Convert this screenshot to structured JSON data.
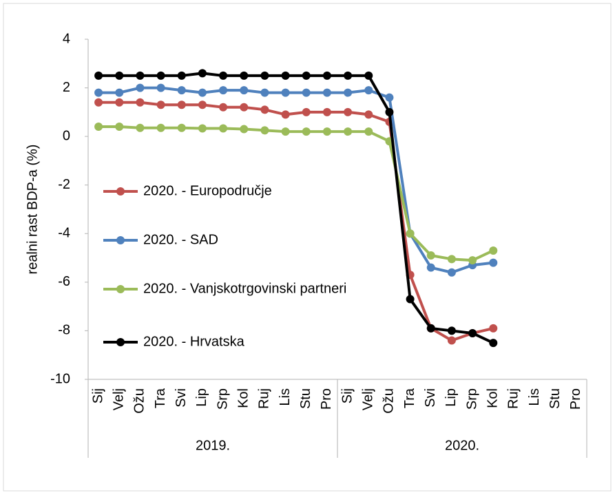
{
  "chart_data": {
    "type": "line",
    "y_label": "realni rast BDP-a (%)",
    "categories": [
      "Sij",
      "Velj",
      "Ožu",
      "Tra",
      "Svi",
      "Lip",
      "Srp",
      "Kol",
      "Ruj",
      "Lis",
      "Stu",
      "Pro",
      "Sij",
      "Velj",
      "Ožu",
      "Tra",
      "Svi",
      "Lip",
      "Srp",
      "Kol",
      "Ruj",
      "Lis",
      "Stu",
      "Pro"
    ],
    "groups": [
      "2019.",
      "2020."
    ],
    "ylim": [
      -10,
      4
    ],
    "yticks": [
      -10,
      -8,
      -6,
      -4,
      -2,
      0,
      2,
      4
    ],
    "grid": false,
    "legend": "left",
    "series": [
      {
        "name": "2020. - Europodručje",
        "color": "#c0504d",
        "values": [
          1.4,
          1.4,
          1.4,
          1.3,
          1.3,
          1.3,
          1.2,
          1.2,
          1.1,
          0.9,
          1.0,
          1.0,
          1.0,
          0.9,
          0.6,
          -5.7,
          -7.9,
          -8.4,
          -8.1,
          -7.9,
          null,
          null,
          null,
          null
        ]
      },
      {
        "name": "2020. - SAD",
        "color": "#4f81bd",
        "values": [
          1.8,
          1.8,
          2.0,
          2.0,
          1.9,
          1.8,
          1.9,
          1.9,
          1.8,
          1.8,
          1.8,
          1.8,
          1.8,
          1.9,
          1.6,
          -4.0,
          -5.4,
          -5.6,
          -5.3,
          -5.2,
          null,
          null,
          null,
          null
        ]
      },
      {
        "name": "2020. - Vanjskotrgovinski partneri",
        "color": "#9bbb59",
        "values": [
          0.4,
          0.4,
          0.35,
          0.35,
          0.35,
          0.33,
          0.33,
          0.3,
          0.25,
          0.2,
          0.2,
          0.2,
          0.2,
          0.2,
          -0.2,
          -4.0,
          -4.9,
          -5.05,
          -5.1,
          -4.7,
          null,
          null,
          null,
          null
        ]
      },
      {
        "name": "2020. - Hrvatska",
        "color": "#000000",
        "values": [
          2.5,
          2.5,
          2.5,
          2.5,
          2.5,
          2.6,
          2.5,
          2.5,
          2.5,
          2.5,
          2.5,
          2.5,
          2.5,
          2.5,
          1.0,
          -6.7,
          -7.9,
          -8.0,
          -8.1,
          -8.5,
          null,
          null,
          null,
          null
        ]
      }
    ]
  }
}
